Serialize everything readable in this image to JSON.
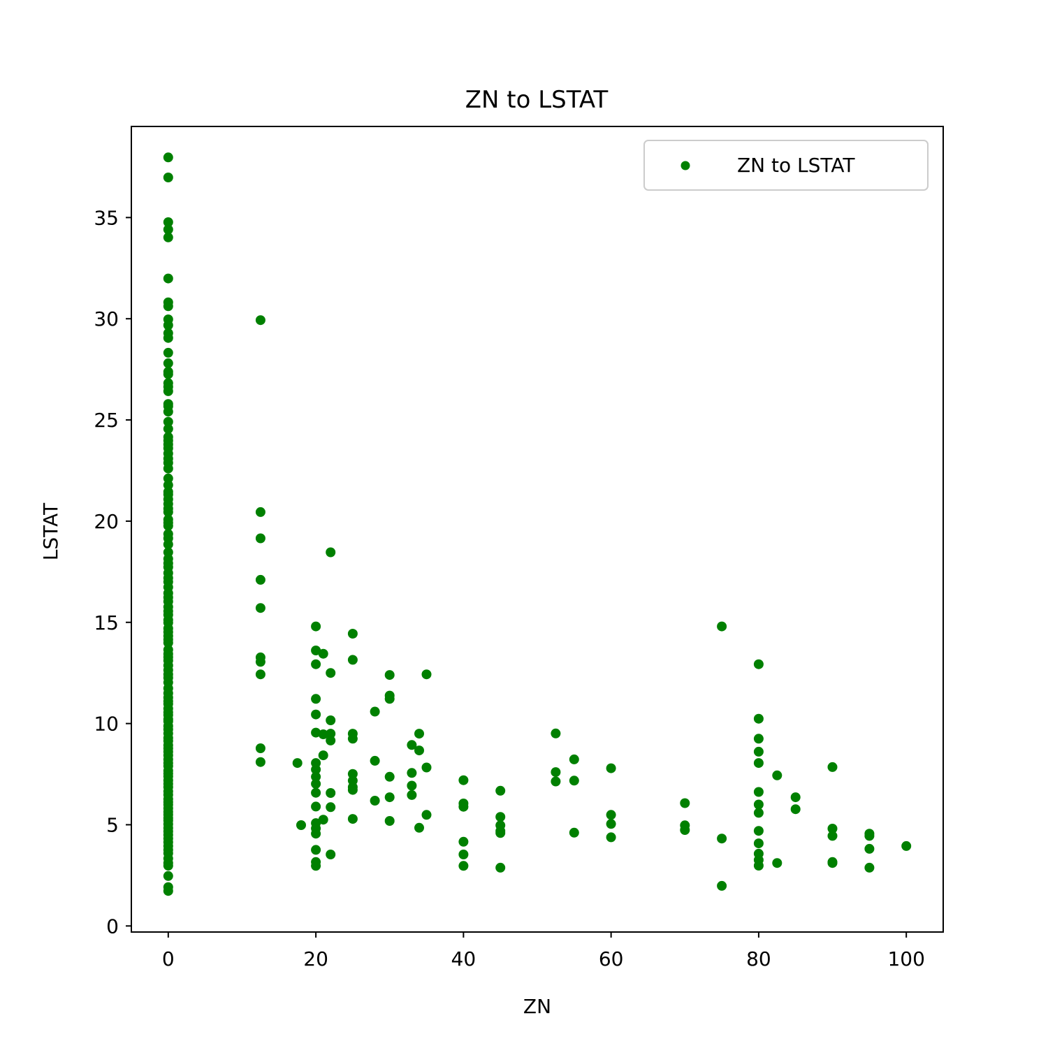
{
  "chart_data": {
    "type": "scatter",
    "title": "ZN to LSTAT",
    "xlabel": "ZN",
    "ylabel": "LSTAT",
    "xlim": [
      -5,
      105
    ],
    "ylim": [
      -0.3,
      39.5
    ],
    "xticks": [
      0,
      20,
      40,
      60,
      80,
      100
    ],
    "yticks": [
      0,
      5,
      10,
      15,
      20,
      25,
      30,
      35
    ],
    "grid": false,
    "legend_position": "upper right",
    "series": [
      {
        "name": "ZN to LSTAT",
        "color": "#008000",
        "points": [
          [
            0,
            37.97
          ],
          [
            0,
            36.98
          ],
          [
            0,
            34.77
          ],
          [
            0,
            34.41
          ],
          [
            0,
            34.02
          ],
          [
            0,
            31.99
          ],
          [
            0,
            30.81
          ],
          [
            0,
            30.62
          ],
          [
            0,
            29.97
          ],
          [
            0,
            29.68
          ],
          [
            0,
            29.29
          ],
          [
            0,
            29.05
          ],
          [
            0,
            28.32
          ],
          [
            0,
            27.8
          ],
          [
            0,
            27.38
          ],
          [
            0,
            27.26
          ],
          [
            0,
            26.82
          ],
          [
            0,
            26.64
          ],
          [
            0,
            26.42
          ],
          [
            0,
            25.79
          ],
          [
            0,
            25.68
          ],
          [
            0,
            25.41
          ],
          [
            0,
            24.91
          ],
          [
            0,
            24.56
          ],
          [
            0,
            24.16
          ],
          [
            0,
            23.98
          ],
          [
            0,
            23.79
          ],
          [
            0,
            23.6
          ],
          [
            0,
            23.34
          ],
          [
            0,
            23.09
          ],
          [
            0,
            22.88
          ],
          [
            0,
            22.6
          ],
          [
            0,
            22.11
          ],
          [
            0,
            21.78
          ],
          [
            0,
            21.45
          ],
          [
            0,
            21.32
          ],
          [
            0,
            21.08
          ],
          [
            0,
            20.85
          ],
          [
            0,
            20.62
          ],
          [
            0,
            20.45
          ],
          [
            0,
            20.08
          ],
          [
            0,
            19.92
          ],
          [
            0,
            19.77
          ],
          [
            0,
            19.37
          ],
          [
            0,
            19.15
          ],
          [
            0,
            18.85
          ],
          [
            0,
            18.46
          ],
          [
            0,
            18.14
          ],
          [
            0,
            17.92
          ],
          [
            0,
            17.73
          ],
          [
            0,
            17.44
          ],
          [
            0,
            17.19
          ],
          [
            0,
            17.0
          ],
          [
            0,
            16.74
          ],
          [
            0,
            16.44
          ],
          [
            0,
            16.23
          ],
          [
            0,
            16.03
          ],
          [
            0,
            15.76
          ],
          [
            0,
            15.55
          ],
          [
            0,
            15.37
          ],
          [
            0,
            15.12
          ],
          [
            0,
            14.98
          ],
          [
            0,
            14.7
          ],
          [
            0,
            14.52
          ],
          [
            0,
            14.33
          ],
          [
            0,
            14.15
          ],
          [
            0,
            13.99
          ],
          [
            0,
            13.65
          ],
          [
            0,
            13.44
          ],
          [
            0,
            13.28
          ],
          [
            0,
            13.11
          ],
          [
            0,
            12.87
          ],
          [
            0,
            12.64
          ],
          [
            0,
            12.43
          ],
          [
            0,
            12.26
          ],
          [
            0,
            12.03
          ],
          [
            0,
            11.74
          ],
          [
            0,
            11.5
          ],
          [
            0,
            11.28
          ],
          [
            0,
            11.1
          ],
          [
            0,
            10.97
          ],
          [
            0,
            10.74
          ],
          [
            0,
            10.56
          ],
          [
            0,
            10.42
          ],
          [
            0,
            10.21
          ],
          [
            0,
            10.11
          ],
          [
            0,
            9.88
          ],
          [
            0,
            9.71
          ],
          [
            0,
            9.51
          ],
          [
            0,
            9.29
          ],
          [
            0,
            9.14
          ],
          [
            0,
            8.93
          ],
          [
            0,
            8.77
          ],
          [
            0,
            8.61
          ],
          [
            0,
            8.43
          ],
          [
            0,
            8.23
          ],
          [
            0,
            8.05
          ],
          [
            0,
            7.9
          ],
          [
            0,
            7.67
          ],
          [
            0,
            7.53
          ],
          [
            0,
            7.39
          ],
          [
            0,
            7.19
          ],
          [
            0,
            7.02
          ],
          [
            0,
            6.86
          ],
          [
            0,
            6.65
          ],
          [
            0,
            6.48
          ],
          [
            0,
            6.27
          ],
          [
            0,
            6.12
          ],
          [
            0,
            5.99
          ],
          [
            0,
            5.81
          ],
          [
            0,
            5.64
          ],
          [
            0,
            5.5
          ],
          [
            0,
            5.33
          ],
          [
            0,
            5.21
          ],
          [
            0,
            5.03
          ],
          [
            0,
            4.84
          ],
          [
            0,
            4.67
          ],
          [
            0,
            4.5
          ],
          [
            0,
            4.32
          ],
          [
            0,
            4.14
          ],
          [
            0,
            3.95
          ],
          [
            0,
            3.76
          ],
          [
            0,
            3.59
          ],
          [
            0,
            3.33
          ],
          [
            0,
            3.11
          ],
          [
            0,
            2.98
          ],
          [
            0,
            2.47
          ],
          [
            0,
            1.92
          ],
          [
            0,
            1.73
          ],
          [
            12.5,
            29.93
          ],
          [
            12.5,
            20.45
          ],
          [
            12.5,
            19.15
          ],
          [
            12.5,
            17.1
          ],
          [
            12.5,
            15.71
          ],
          [
            12.5,
            13.27
          ],
          [
            12.5,
            13.05
          ],
          [
            12.5,
            12.43
          ],
          [
            12.5,
            8.78
          ],
          [
            12.5,
            8.1
          ],
          [
            17.5,
            8.05
          ],
          [
            18,
            4.98
          ],
          [
            20,
            14.8
          ],
          [
            20,
            13.61
          ],
          [
            20,
            12.93
          ],
          [
            20,
            11.22
          ],
          [
            20,
            10.45
          ],
          [
            20,
            9.55
          ],
          [
            20,
            8.05
          ],
          [
            20,
            7.73
          ],
          [
            20,
            7.37
          ],
          [
            20,
            7.02
          ],
          [
            20,
            6.58
          ],
          [
            20,
            5.9
          ],
          [
            20,
            5.08
          ],
          [
            20,
            4.82
          ],
          [
            20,
            4.56
          ],
          [
            20,
            3.76
          ],
          [
            20,
            3.16
          ],
          [
            20,
            2.97
          ],
          [
            21,
            13.45
          ],
          [
            21,
            9.47
          ],
          [
            21,
            8.43
          ],
          [
            21,
            5.25
          ],
          [
            22,
            18.46
          ],
          [
            22,
            12.5
          ],
          [
            22,
            10.16
          ],
          [
            22,
            9.5
          ],
          [
            22,
            9.16
          ],
          [
            22,
            6.57
          ],
          [
            22,
            5.87
          ],
          [
            22,
            3.53
          ],
          [
            25,
            14.44
          ],
          [
            25,
            13.15
          ],
          [
            25,
            9.5
          ],
          [
            25,
            9.25
          ],
          [
            25,
            7.51
          ],
          [
            25,
            7.18
          ],
          [
            25,
            6.86
          ],
          [
            25,
            6.72
          ],
          [
            25,
            5.29
          ],
          [
            28,
            10.59
          ],
          [
            28,
            8.16
          ],
          [
            28,
            6.19
          ],
          [
            30,
            12.4
          ],
          [
            30,
            11.38
          ],
          [
            30,
            11.22
          ],
          [
            30,
            7.37
          ],
          [
            30,
            6.36
          ],
          [
            30,
            5.19
          ],
          [
            33,
            8.94
          ],
          [
            33,
            7.56
          ],
          [
            33,
            6.93
          ],
          [
            33,
            6.47
          ],
          [
            34,
            9.5
          ],
          [
            34,
            8.67
          ],
          [
            34,
            4.85
          ],
          [
            35,
            12.43
          ],
          [
            35,
            7.83
          ],
          [
            35,
            5.49
          ],
          [
            40,
            7.2
          ],
          [
            40,
            6.05
          ],
          [
            40,
            5.89
          ],
          [
            40,
            4.16
          ],
          [
            40,
            3.53
          ],
          [
            40,
            2.97
          ],
          [
            45,
            6.68
          ],
          [
            45,
            5.39
          ],
          [
            45,
            4.97
          ],
          [
            45,
            4.69
          ],
          [
            45,
            4.59
          ],
          [
            45,
            2.88
          ],
          [
            52.5,
            9.51
          ],
          [
            52.5,
            7.6
          ],
          [
            52.5,
            7.14
          ],
          [
            55,
            8.23
          ],
          [
            55,
            7.18
          ],
          [
            55,
            4.61
          ],
          [
            60,
            7.79
          ],
          [
            60,
            5.49
          ],
          [
            60,
            5.04
          ],
          [
            60,
            4.38
          ],
          [
            70,
            6.07
          ],
          [
            70,
            4.97
          ],
          [
            70,
            4.74
          ],
          [
            75,
            14.8
          ],
          [
            75,
            4.32
          ],
          [
            75,
            1.98
          ],
          [
            80,
            12.93
          ],
          [
            80,
            10.24
          ],
          [
            80,
            9.25
          ],
          [
            80,
            8.61
          ],
          [
            80,
            8.05
          ],
          [
            80,
            6.62
          ],
          [
            80,
            6.0
          ],
          [
            80,
            5.59
          ],
          [
            80,
            4.7
          ],
          [
            80,
            4.08
          ],
          [
            80,
            3.57
          ],
          [
            80,
            3.26
          ],
          [
            80,
            2.98
          ],
          [
            82.5,
            7.44
          ],
          [
            82.5,
            3.11
          ],
          [
            85,
            6.36
          ],
          [
            85,
            5.77
          ],
          [
            90,
            7.85
          ],
          [
            90,
            4.81
          ],
          [
            90,
            4.45
          ],
          [
            90,
            3.16
          ],
          [
            90,
            3.11
          ],
          [
            95,
            4.56
          ],
          [
            95,
            4.45
          ],
          [
            95,
            3.81
          ],
          [
            95,
            2.88
          ],
          [
            100,
            3.95
          ]
        ]
      }
    ]
  }
}
